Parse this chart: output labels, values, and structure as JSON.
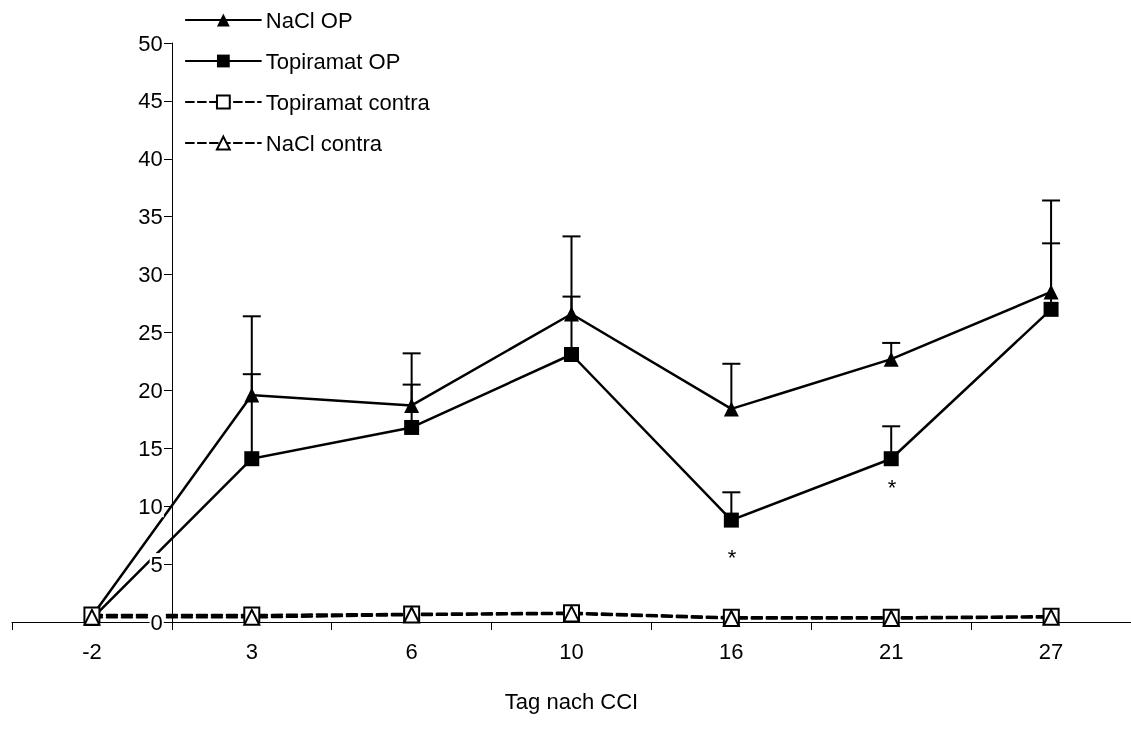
{
  "chart_data": {
    "type": "line",
    "xlabel": "Tag nach CCI",
    "categories": [
      "-2",
      "3",
      "6",
      "10",
      "16",
      "21",
      "27"
    ],
    "series": [
      {
        "name": "NaCl OP",
        "color": "#000000",
        "marker": "triangle",
        "line_style": "solid",
        "values": [
          0.5,
          19.6,
          18.7,
          26.6,
          18.4,
          22.7,
          28.5
        ],
        "errors": [
          null,
          [
            19.6,
            26.4
          ],
          [
            18.7,
            23.2
          ],
          [
            26.6,
            33.3
          ],
          [
            18.4,
            22.3
          ],
          [
            22.7,
            24.1
          ],
          [
            28.5,
            36.4
          ]
        ]
      },
      {
        "name": "Topiramat OP",
        "color": "#000000",
        "marker": "square",
        "line_style": "solid",
        "values": [
          0.3,
          14.1,
          16.8,
          23.1,
          8.8,
          14.1,
          27.0
        ],
        "errors": [
          null,
          [
            14.1,
            21.4
          ],
          [
            16.8,
            20.5
          ],
          [
            23.1,
            28.1
          ],
          [
            8.8,
            11.2
          ],
          [
            14.1,
            16.9
          ],
          [
            27.0,
            32.7
          ]
        ]
      },
      {
        "name": "Topiramat contra",
        "color": "#000000",
        "marker": "square",
        "line_style": "dashed",
        "values": [
          0.6,
          0.6,
          0.7,
          0.8,
          0.4,
          0.4,
          0.5
        ]
      },
      {
        "name": "NaCl contra",
        "color": "#000000",
        "marker": "triangle",
        "line_style": "dashed",
        "values": [
          0.4,
          0.4,
          0.6,
          0.7,
          0.3,
          0.3,
          0.4
        ]
      }
    ],
    "ylim": [
      0,
      50
    ],
    "yticks": [
      0,
      5,
      10,
      15,
      20,
      25,
      30,
      35,
      40,
      45,
      50
    ],
    "grid": false,
    "legend": "top left",
    "annotations": [
      "*",
      "*"
    ]
  }
}
